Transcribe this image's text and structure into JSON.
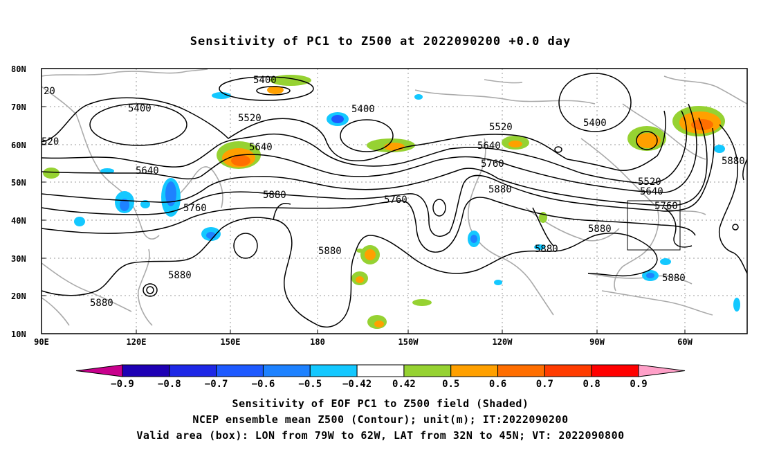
{
  "title": "Sensitivity of PC1 to Z500 at 2022090200 +0.0 day",
  "axes": {
    "lat_labels": [
      "80N",
      "70N",
      "60N",
      "50N",
      "40N",
      "30N",
      "20N",
      "10N"
    ],
    "lon_labels": [
      "90E",
      "120E",
      "150E",
      "180",
      "150W",
      "120W",
      "90W",
      "60W"
    ]
  },
  "contour_labels": {
    "c5400a": "5400",
    "c5400b": "5400",
    "c5400c": "5400",
    "c5400d": "5400",
    "c5520a": "5520",
    "c5520b": "5520",
    "c5520c": "5520",
    "c5640a": "5640",
    "c5640b": "5640",
    "c5640c": "5640",
    "c5640d": "5640",
    "c5760a": "5760",
    "c5760b": "5760",
    "c5760c": "5760",
    "c5760d": "5760",
    "c5880a": "5880",
    "c5880b": "5880",
    "c5880c": "5880",
    "c5880d": "5880",
    "c5880e": "5880",
    "c5880f": "5880",
    "c5880g": "5880",
    "c5880h": "5880",
    "c5880i": "5880",
    "c20": "20",
    "c520": "520"
  },
  "colorbar": {
    "labels": [
      "−0.9",
      "−0.8",
      "−0.7",
      "−0.6",
      "−0.5",
      "−0.42",
      "0.42",
      "0.5",
      "0.6",
      "0.7",
      "0.8",
      "0.9"
    ],
    "colors": [
      "#c8008c",
      "#1e00b4",
      "#1e28e6",
      "#1e5aff",
      "#1e82ff",
      "#14c8ff",
      "#ffffff",
      "#96d232",
      "#ffa000",
      "#ff6e00",
      "#ff3c00",
      "#ff0000",
      "#ffa0c8"
    ]
  },
  "captions": {
    "line1": "Sensitivity of EOF PC1 to Z500 field (Shaded)",
    "line2": "NCEP ensemble mean Z500 (Contour); unit(m); IT:2022090200",
    "line3": "Valid area (box): LON from 79W to 62W, LAT from 32N to 45N; VT: 2022090800"
  }
}
